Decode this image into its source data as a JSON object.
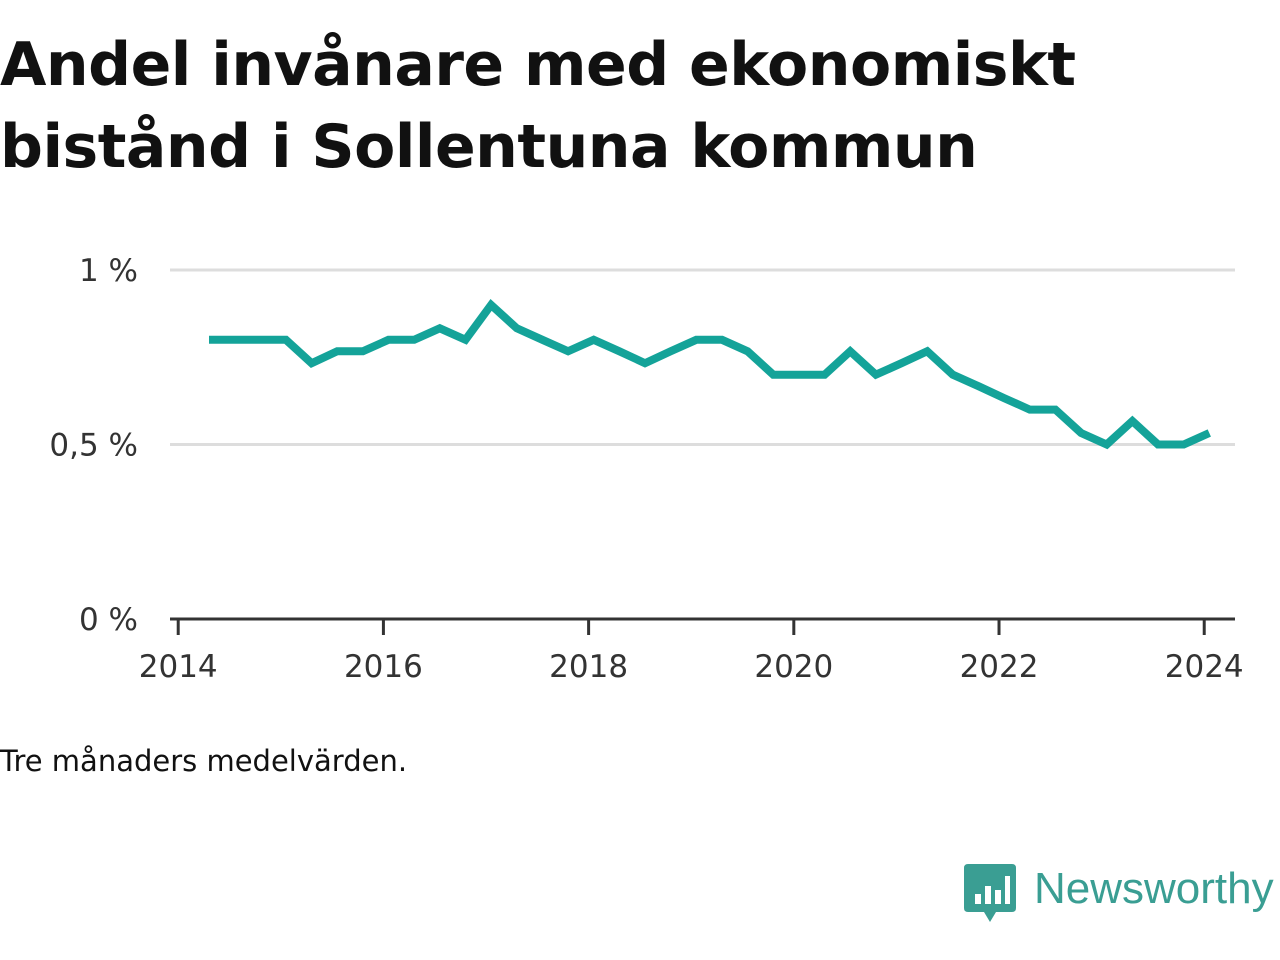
{
  "title": "Andel invånare med ekonomiskt bistånd i Sollentuna kommun",
  "note": "Tre månaders medelvärden.",
  "brand": {
    "name": "Newsworthy",
    "icon": "bar-chart-speech-bubble-icon",
    "color": "#3a9e93"
  },
  "colors": {
    "line": "#14a399",
    "grid": "#dddddd",
    "axis": "#333333"
  },
  "chart_data": {
    "type": "line",
    "title": "Andel invånare med ekonomiskt bistånd i Sollentuna kommun",
    "xlabel": "",
    "ylabel": "",
    "xlim": [
      2013.92,
      2024.3
    ],
    "ylim": [
      0,
      1.0
    ],
    "grid": "horizontal",
    "y_ticks": [
      {
        "value": 0,
        "label": "0 %"
      },
      {
        "value": 0.5,
        "label": "0,5 %"
      },
      {
        "value": 1.0,
        "label": "1 %"
      }
    ],
    "x_ticks": [
      {
        "value": 2014,
        "label": "2014"
      },
      {
        "value": 2016,
        "label": "2016"
      },
      {
        "value": 2018,
        "label": "2018"
      },
      {
        "value": 2020,
        "label": "2020"
      },
      {
        "value": 2022,
        "label": "2022"
      },
      {
        "value": 2024,
        "label": "2024"
      }
    ],
    "series": [
      {
        "x": [
          2014.3,
          2014.55,
          2014.8,
          2015.05,
          2015.3,
          2015.55,
          2015.8,
          2016.05,
          2016.3,
          2016.55,
          2016.8,
          2017.05,
          2017.3,
          2017.55,
          2017.8,
          2018.05,
          2018.3,
          2018.55,
          2018.8,
          2019.05,
          2019.3,
          2019.55,
          2019.8,
          2020.05,
          2020.3,
          2020.55,
          2020.8,
          2021.05,
          2021.3,
          2021.55,
          2021.8,
          2022.05,
          2022.3,
          2022.55,
          2022.8,
          2023.05,
          2023.3,
          2023.55,
          2023.8,
          2024.05
        ],
        "values": [
          0.8,
          0.8,
          0.8,
          0.8,
          0.733,
          0.767,
          0.767,
          0.8,
          0.8,
          0.833,
          0.8,
          0.9,
          0.833,
          0.8,
          0.767,
          0.8,
          0.767,
          0.733,
          0.767,
          0.8,
          0.8,
          0.767,
          0.7,
          0.7,
          0.7,
          0.767,
          0.7,
          0.733,
          0.767,
          0.7,
          0.667,
          0.633,
          0.6,
          0.6,
          0.533,
          0.5,
          0.567,
          0.5,
          0.5,
          0.533
        ]
      }
    ]
  }
}
